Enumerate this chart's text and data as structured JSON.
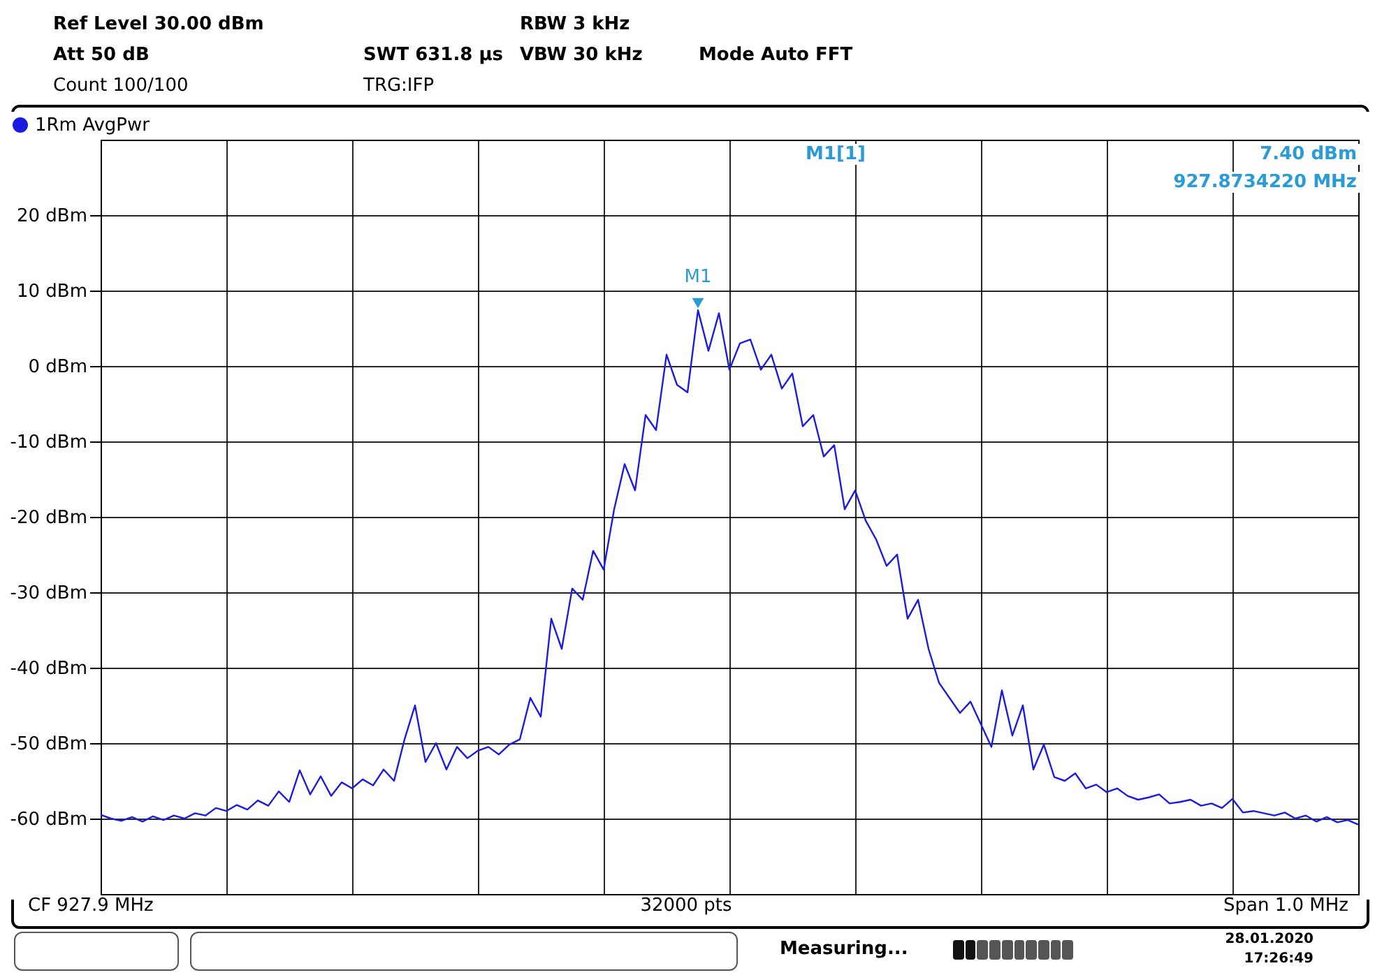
{
  "chart_data": {
    "type": "line",
    "legend": "top left",
    "grid": true,
    "ylim": [
      -70,
      30
    ],
    "yticks": [
      {
        "value": 20,
        "label": "20 dBm"
      },
      {
        "value": 10,
        "label": "10 dBm"
      },
      {
        "value": 0,
        "label": "0 dBm"
      },
      {
        "value": -10,
        "label": "-10 dBm"
      },
      {
        "value": -20,
        "label": "-20 dBm"
      },
      {
        "value": -30,
        "label": "-30 dBm"
      },
      {
        "value": -40,
        "label": "-40 dBm"
      },
      {
        "value": -50,
        "label": "-50 dBm"
      },
      {
        "value": -60,
        "label": "-60 dBm"
      }
    ],
    "categories": [
      null,
      null,
      null,
      null,
      null,
      null,
      null,
      null,
      null,
      null,
      null,
      null,
      null,
      null,
      null,
      null,
      null,
      null,
      null,
      null,
      null,
      null,
      null,
      null,
      null,
      null,
      null,
      null,
      null,
      null,
      null,
      null,
      null,
      null,
      null,
      null,
      null,
      null,
      null,
      null,
      null,
      null,
      null,
      null,
      null,
      null,
      null,
      null,
      null,
      null,
      null,
      null,
      null,
      null,
      null,
      null,
      null,
      null,
      null,
      null,
      null,
      null,
      null,
      null,
      null,
      null,
      null,
      null,
      null,
      null,
      null,
      null,
      null,
      null,
      null,
      null,
      null,
      null,
      null,
      null,
      null,
      null,
      null,
      null,
      null,
      null,
      null,
      null,
      null,
      null,
      null,
      null,
      null,
      null,
      null,
      null,
      null,
      null,
      null,
      null,
      null,
      null,
      null,
      null,
      null,
      null,
      null,
      null,
      null,
      null,
      null,
      null,
      null,
      null,
      null,
      null,
      null,
      null,
      null,
      null,
      null
    ],
    "series": [
      {
        "name": "1Rm AvgPwr",
        "color": "#1c1ce0",
        "values": [
          -59.5,
          -60.0,
          -60.3,
          -59.8,
          -60.4,
          -59.7,
          -60.2,
          -59.6,
          -60.0,
          -59.3,
          -59.6,
          -58.6,
          -59.0,
          -58.2,
          -58.8,
          -57.6,
          -58.3,
          -56.4,
          -57.8,
          -53.6,
          -56.8,
          -54.4,
          -57.0,
          -55.2,
          -56.0,
          -54.8,
          -55.6,
          -53.5,
          -55.0,
          -49.5,
          -45.0,
          -52.5,
          -50.0,
          -53.5,
          -50.5,
          -52.0,
          -51.0,
          -50.5,
          -51.5,
          -50.2,
          -49.5,
          -44.0,
          -46.5,
          -33.5,
          -37.5,
          -29.5,
          -31.0,
          -24.5,
          -27.0,
          -19.0,
          -13.0,
          -16.5,
          -6.5,
          -8.5,
          1.5,
          -2.5,
          -3.5,
          7.4,
          2.0,
          7.0,
          -0.5,
          3.0,
          3.5,
          -0.5,
          1.5,
          -3.0,
          -1.0,
          -8.0,
          -6.5,
          -12.0,
          -10.5,
          -19.0,
          -16.5,
          -20.5,
          -23.0,
          -26.5,
          -25.0,
          -33.5,
          -31.0,
          -37.5,
          -42.0,
          -44.0,
          -46.0,
          -44.5,
          -47.5,
          -50.5,
          -43.0,
          -49.0,
          -45.0,
          -53.5,
          -50.2,
          -54.5,
          -55.0,
          -54.0,
          -56.0,
          -55.5,
          -56.5,
          -56.0,
          -57.0,
          -57.5,
          -57.2,
          -56.8,
          -58.0,
          -57.8,
          -57.5,
          -58.3,
          -58.0,
          -58.6,
          -57.4,
          -59.2,
          -59.0,
          -59.3,
          -59.6,
          -59.2,
          -60.0,
          -59.6,
          -60.4,
          -59.8,
          -60.5,
          -60.2,
          -60.8
        ]
      }
    ],
    "annotations": [
      "Ref Level 30.00 dBm",
      "Att 50 dB",
      "Count 100/100",
      "SWT 631.8 µs",
      "TRG:IFP",
      "RBW 3 kHz",
      "VBW 30 kHz",
      "Mode Auto FFT",
      "M1[1]",
      "7.40 dBm",
      "927.8734220 MHz",
      {
        "text": "M1",
        "y": 7.4
      },
      "CF 927.9 MHz",
      "32000 pts",
      "Span 1.0 MHz",
      "Measuring...",
      "28.01.2020",
      "17:26:49"
    ]
  }
}
